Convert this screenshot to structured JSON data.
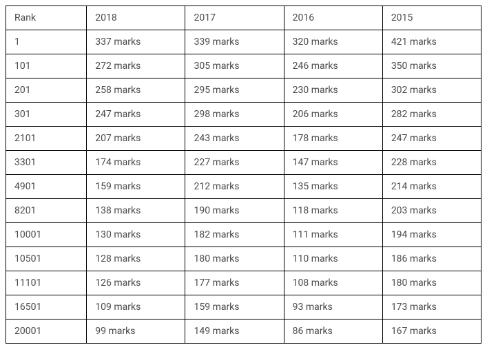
{
  "table": {
    "type": "table",
    "columns": [
      "Rank",
      "2018",
      "2017",
      "2016",
      "2015"
    ],
    "rows": [
      [
        "1",
        "337 marks",
        "339 marks",
        "320 marks",
        "421 marks"
      ],
      [
        "101",
        "272 marks",
        "305 marks",
        "246 marks",
        "350 marks"
      ],
      [
        "201",
        "258 marks",
        "295 marks",
        "230 marks",
        "302 marks"
      ],
      [
        "301",
        "247 marks",
        "298 marks",
        "206 marks",
        "282 marks"
      ],
      [
        "2101",
        "207 marks",
        "243 marks",
        "178 marks",
        "247 marks"
      ],
      [
        "3301",
        "174 marks",
        "227 marks",
        "147 marks",
        "228 marks"
      ],
      [
        "4901",
        "159 marks",
        "212 marks",
        "135 marks",
        "214 marks"
      ],
      [
        "8201",
        "138 marks",
        "190 marks",
        "118 marks",
        "203 marks"
      ],
      [
        "10001",
        "130 marks",
        "182 marks",
        "111 marks",
        "194 marks"
      ],
      [
        "10501",
        "128 marks",
        "180 marks",
        "110 marks",
        "186 marks"
      ],
      [
        "11101",
        "126 marks",
        "177 marks",
        "108 marks",
        "180 marks"
      ],
      [
        "16501",
        "109 marks",
        "159 marks",
        "93 marks",
        "173 marks"
      ],
      [
        "20001",
        "99 marks",
        "149 marks",
        "86 marks",
        "167 marks"
      ]
    ],
    "border_color": "#000000",
    "text_color": "#4a4a4a",
    "background_color": "#ffffff",
    "font_size": 14,
    "cell_padding": "9px 12px",
    "column_widths": [
      "17%",
      "20.75%",
      "20.75%",
      "20.75%",
      "20.75%"
    ]
  }
}
